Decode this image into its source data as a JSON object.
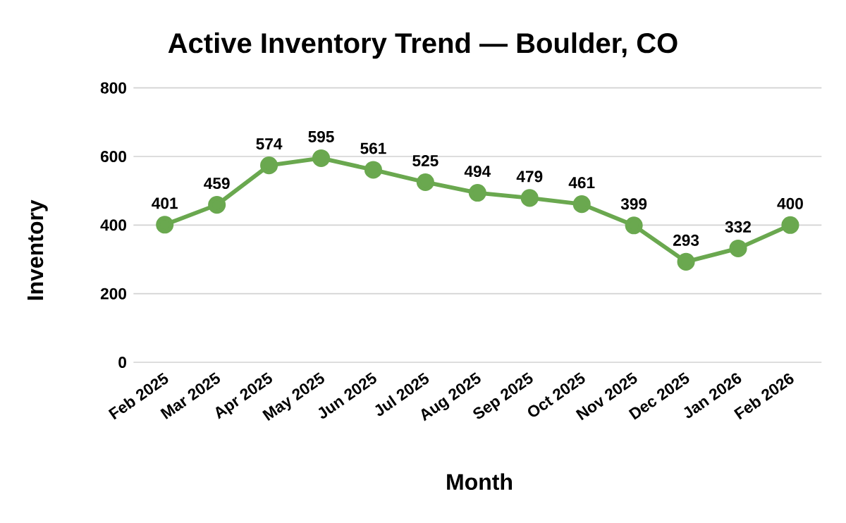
{
  "chart_data": {
    "type": "line",
    "title": "Active Inventory Trend — Boulder, CO",
    "xlabel": "Month",
    "ylabel": "Inventory",
    "categories": [
      "Feb 2025",
      "Mar 2025",
      "Apr 2025",
      "May 2025",
      "Jun 2025",
      "Jul 2025",
      "Aug 2025",
      "Sep 2025",
      "Oct 2025",
      "Nov 2025",
      "Dec 2025",
      "Jan 2026",
      "Feb 2026"
    ],
    "values": [
      401,
      459,
      574,
      595,
      561,
      525,
      494,
      479,
      461,
      399,
      293,
      332,
      400
    ],
    "color": "#6aa84f",
    "ylim": [
      0,
      800
    ],
    "yticks": [
      0,
      200,
      400,
      600,
      800
    ],
    "grid": "y",
    "marker": "circle",
    "line_style": "solid",
    "data_labels": true
  }
}
